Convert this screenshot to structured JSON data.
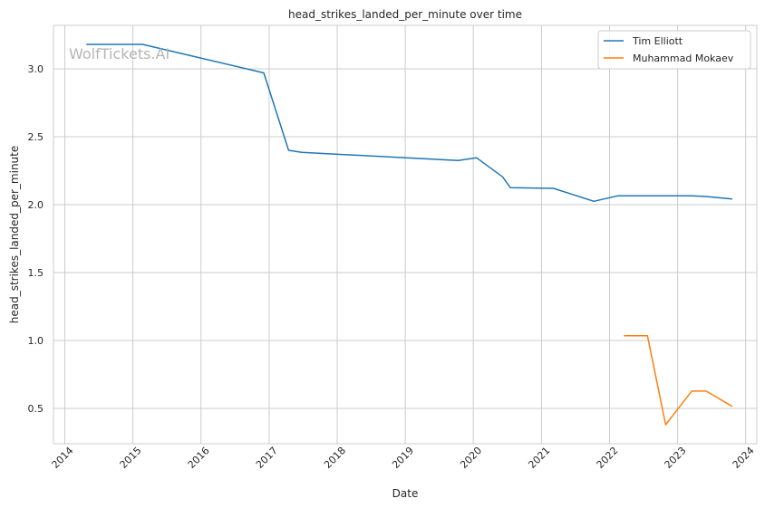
{
  "chart_data": {
    "type": "line",
    "title": "head_strikes_landed_per_minute over time",
    "xlabel": "Date",
    "ylabel": "head_strikes_landed_per_minute",
    "watermark": "WolfTickets.AI",
    "x_axis": {
      "type": "date",
      "range": [
        "2013-11-01",
        "2024-03-01"
      ],
      "ticks": [
        "2014",
        "2015",
        "2016",
        "2017",
        "2018",
        "2019",
        "2020",
        "2021",
        "2022",
        "2023",
        "2024"
      ]
    },
    "y_axis": {
      "range": [
        0.24,
        3.32
      ],
      "ticks": [
        "0.5",
        "1.0",
        "1.5",
        "2.0",
        "2.5",
        "3.0"
      ]
    },
    "grid": true,
    "legend_position": "top-right",
    "series": [
      {
        "name": "Tim Elliott",
        "color": "#1f77b4",
        "points": [
          [
            "2014-04-26",
            3.18
          ],
          [
            "2015-02-22",
            3.18
          ],
          [
            "2016-12-03",
            2.97
          ],
          [
            "2017-04-15",
            2.4
          ],
          [
            "2017-06-25",
            2.385
          ],
          [
            "2019-10-12",
            2.325
          ],
          [
            "2020-01-18",
            2.345
          ],
          [
            "2020-06-06",
            2.205
          ],
          [
            "2020-07-18",
            2.125
          ],
          [
            "2021-03-06",
            2.12
          ],
          [
            "2021-10-09",
            2.025
          ],
          [
            "2022-02-12",
            2.065
          ],
          [
            "2023-03-18",
            2.065
          ],
          [
            "2023-06-03",
            2.06
          ],
          [
            "2023-10-21",
            2.042
          ]
        ]
      },
      {
        "name": "Muhammad Mokaev",
        "color": "#ff7f0e",
        "points": [
          [
            "2022-03-19",
            1.035
          ],
          [
            "2022-07-23",
            1.035
          ],
          [
            "2022-10-29",
            0.38
          ],
          [
            "2023-03-18",
            0.627
          ],
          [
            "2023-06-03",
            0.627
          ],
          [
            "2023-10-21",
            0.515
          ]
        ]
      }
    ]
  }
}
